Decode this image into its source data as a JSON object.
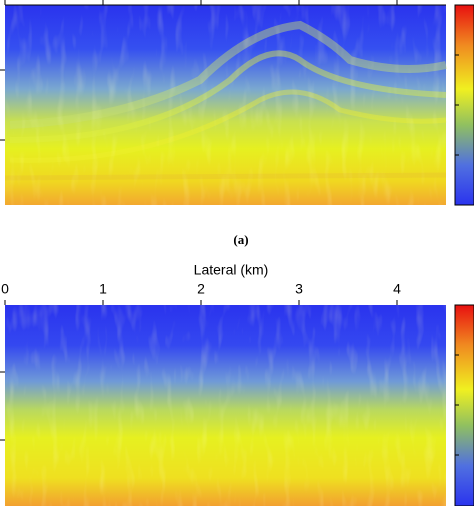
{
  "chart_data": [
    {
      "type": "image",
      "caption": "(a)",
      "xlim": [
        0,
        4.5
      ],
      "xticks": [
        0,
        1,
        2,
        3,
        4
      ],
      "xtick_labels_shown": false
    },
    {
      "type": "image",
      "xlabel": "Lateral (km)",
      "xlim": [
        0,
        4.5
      ],
      "xticks": [
        0,
        1,
        2,
        3,
        4
      ],
      "xtick_labels_shown": true
    }
  ]
}
